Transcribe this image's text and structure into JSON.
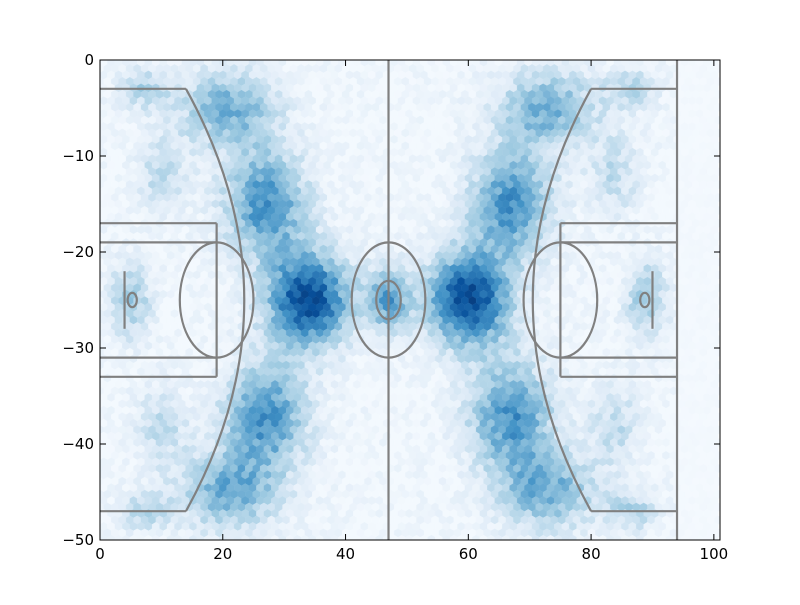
{
  "chart_data": {
    "type": "heatmap",
    "subtype": "hexbin",
    "title": "",
    "xlabel": "",
    "ylabel": "",
    "xlim": [
      0,
      101
    ],
    "ylim": [
      -50,
      0
    ],
    "x_ticks": [
      0,
      20,
      40,
      60,
      80,
      100
    ],
    "y_ticks": [
      0,
      -10,
      -20,
      -30,
      -40,
      -50
    ],
    "x_tick_labels": [
      "0",
      "20",
      "40",
      "60",
      "80",
      "100"
    ],
    "y_tick_labels": [
      "0",
      "−10",
      "−20",
      "−30",
      "−40",
      "−50"
    ],
    "grid": false,
    "colormap": [
      "#f7fbff",
      "#deebf7",
      "#9ecae1",
      "#4292c6",
      "#08519c",
      "#08306b"
    ],
    "court_line_color": "#808080",
    "density_regions": [
      {
        "x": 34,
        "y": -25,
        "sx": 5,
        "sy": 3.5,
        "weight": 1.0
      },
      {
        "x": 60,
        "y": -25,
        "sx": 5,
        "sy": 3.5,
        "weight": 1.0
      },
      {
        "x": 47,
        "y": -25,
        "sx": 2.5,
        "sy": 2.5,
        "weight": 0.6
      },
      {
        "x": 27,
        "y": -15,
        "sx": 5,
        "sy": 4,
        "weight": 0.7
      },
      {
        "x": 67,
        "y": -15,
        "sx": 5,
        "sy": 4,
        "weight": 0.7
      },
      {
        "x": 27,
        "y": -37,
        "sx": 5,
        "sy": 4,
        "weight": 0.7
      },
      {
        "x": 67,
        "y": -37,
        "sx": 5,
        "sy": 4,
        "weight": 0.7
      },
      {
        "x": 21,
        "y": -5,
        "sx": 6,
        "sy": 3,
        "weight": 0.55
      },
      {
        "x": 73,
        "y": -5,
        "sx": 6,
        "sy": 3,
        "weight": 0.55
      },
      {
        "x": 21,
        "y": -45,
        "sx": 6,
        "sy": 3,
        "weight": 0.55
      },
      {
        "x": 73,
        "y": -45,
        "sx": 6,
        "sy": 3,
        "weight": 0.55
      },
      {
        "x": 5,
        "y": -25,
        "sx": 2.5,
        "sy": 3,
        "weight": 0.45
      },
      {
        "x": 89,
        "y": -25,
        "sx": 2.5,
        "sy": 3,
        "weight": 0.45
      },
      {
        "x": 10,
        "y": -12,
        "sx": 3,
        "sy": 3,
        "weight": 0.3
      },
      {
        "x": 84,
        "y": -12,
        "sx": 3,
        "sy": 3,
        "weight": 0.3
      },
      {
        "x": 10,
        "y": -38,
        "sx": 3,
        "sy": 3,
        "weight": 0.3
      },
      {
        "x": 84,
        "y": -38,
        "sx": 3,
        "sy": 3,
        "weight": 0.3
      },
      {
        "x": 7,
        "y": -3,
        "sx": 3,
        "sy": 1.5,
        "weight": 0.35
      },
      {
        "x": 87,
        "y": -3,
        "sx": 3,
        "sy": 1.5,
        "weight": 0.35
      },
      {
        "x": 7,
        "y": -47,
        "sx": 3,
        "sy": 1.5,
        "weight": 0.35
      },
      {
        "x": 87,
        "y": -47,
        "sx": 3,
        "sy": 1.5,
        "weight": 0.35
      }
    ],
    "density_bounds": {
      "x": [
        0,
        94
      ],
      "y": [
        -50,
        0
      ]
    },
    "faint_region": {
      "x": [
        94,
        101
      ],
      "y": [
        -50,
        0
      ]
    },
    "court_lines": [
      {
        "x1": 0,
        "y1": -3,
        "x2": 14,
        "y2": -3
      },
      {
        "x1": 0,
        "y1": -47,
        "x2": 14,
        "y2": -47
      },
      {
        "x1": 80,
        "y1": -3,
        "x2": 94,
        "y2": -3
      },
      {
        "x1": 80,
        "y1": -47,
        "x2": 94,
        "y2": -47
      },
      {
        "x1": 47,
        "y1": 0,
        "x2": 47,
        "y2": -50
      },
      {
        "x1": 94,
        "y1": 0,
        "x2": 94,
        "y2": -50
      },
      {
        "x1": 0,
        "y1": -17,
        "x2": 19,
        "y2": -17
      },
      {
        "x1": 0,
        "y1": -33,
        "x2": 19,
        "y2": -33
      },
      {
        "x1": 19,
        "y1": -17,
        "x2": 19,
        "y2": -33
      },
      {
        "x1": 0,
        "y1": -19,
        "x2": 19,
        "y2": -19
      },
      {
        "x1": 0,
        "y1": -31,
        "x2": 19,
        "y2": -31
      },
      {
        "x1": 75,
        "y1": -17,
        "x2": 94,
        "y2": -17
      },
      {
        "x1": 75,
        "y1": -33,
        "x2": 94,
        "y2": -33
      },
      {
        "x1": 75,
        "y1": -17,
        "x2": 75,
        "y2": -33
      },
      {
        "x1": 75,
        "y1": -19,
        "x2": 94,
        "y2": -19
      },
      {
        "x1": 75,
        "y1": -31,
        "x2": 94,
        "y2": -31
      },
      {
        "x1": 4,
        "y1": -22,
        "x2": 4,
        "y2": -28
      },
      {
        "x1": 90,
        "y1": -22,
        "x2": 90,
        "y2": -28
      }
    ],
    "court_arcs": [
      {
        "p1": [
          14,
          -3
        ],
        "c": [
          33,
          -25
        ],
        "p2": [
          14,
          -47
        ]
      },
      {
        "p1": [
          80,
          -3
        ],
        "c": [
          61,
          -25
        ],
        "p2": [
          80,
          -47
        ]
      }
    ],
    "court_ellipses": [
      {
        "cx": 19,
        "cy": -25,
        "rx": 6,
        "ry": 6
      },
      {
        "cx": 75,
        "cy": -25,
        "rx": 6,
        "ry": 6
      },
      {
        "cx": 47,
        "cy": -25,
        "rx": 6,
        "ry": 6
      },
      {
        "cx": 47,
        "cy": -25,
        "rx": 2,
        "ry": 2
      },
      {
        "cx": 5.25,
        "cy": -25,
        "rx": 0.75,
        "ry": 0.75
      },
      {
        "cx": 88.75,
        "cy": -25,
        "rx": 0.75,
        "ry": 0.75
      }
    ]
  }
}
